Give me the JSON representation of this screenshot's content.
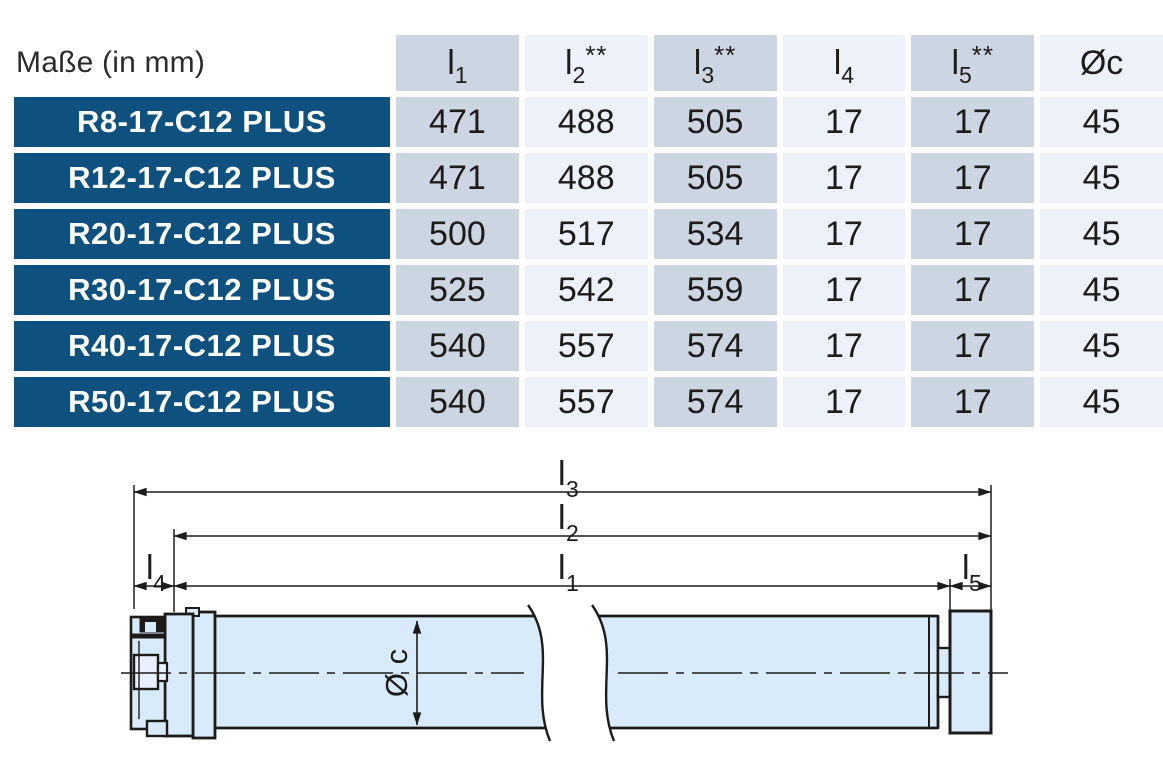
{
  "table": {
    "title": "Maße (in mm)",
    "columns": [
      {
        "base": "l",
        "sub": "1",
        "sup": ""
      },
      {
        "base": "l",
        "sub": "2",
        "sup": "**"
      },
      {
        "base": "l",
        "sub": "3",
        "sup": "**"
      },
      {
        "base": "l",
        "sub": "4",
        "sup": ""
      },
      {
        "base": "l",
        "sub": "5",
        "sup": "**"
      },
      {
        "base": "Øc",
        "sub": "",
        "sup": ""
      }
    ],
    "rows": [
      {
        "label": "R8-17-C12 PLUS",
        "values": [
          "471",
          "488",
          "505",
          "17",
          "17",
          "45"
        ]
      },
      {
        "label": "R12-17-C12 PLUS",
        "values": [
          "471",
          "488",
          "505",
          "17",
          "17",
          "45"
        ]
      },
      {
        "label": "R20-17-C12 PLUS",
        "values": [
          "500",
          "517",
          "534",
          "17",
          "17",
          "45"
        ]
      },
      {
        "label": "R30-17-C12 PLUS",
        "values": [
          "525",
          "542",
          "559",
          "17",
          "17",
          "45"
        ]
      },
      {
        "label": "R40-17-C12 PLUS",
        "values": [
          "540",
          "557",
          "574",
          "17",
          "17",
          "45"
        ]
      },
      {
        "label": "R50-17-C12 PLUS",
        "values": [
          "540",
          "557",
          "574",
          "17",
          "17",
          "45"
        ]
      }
    ]
  },
  "diagram": {
    "labels": {
      "l1": {
        "base": "l",
        "sub": "1"
      },
      "l2": {
        "base": "l",
        "sub": "2"
      },
      "l3": {
        "base": "l",
        "sub": "3"
      },
      "l4": {
        "base": "l",
        "sub": "4"
      },
      "l5": {
        "base": "l",
        "sub": "5"
      },
      "diameter": "Ø c"
    }
  },
  "colors": {
    "row_label_bg": "#0e517e",
    "column_dark_bg": "#ccd5e2",
    "column_light_bg": "#edf1f9",
    "tube_fill": "#d9eafa",
    "outline": "#1c1c1a"
  }
}
